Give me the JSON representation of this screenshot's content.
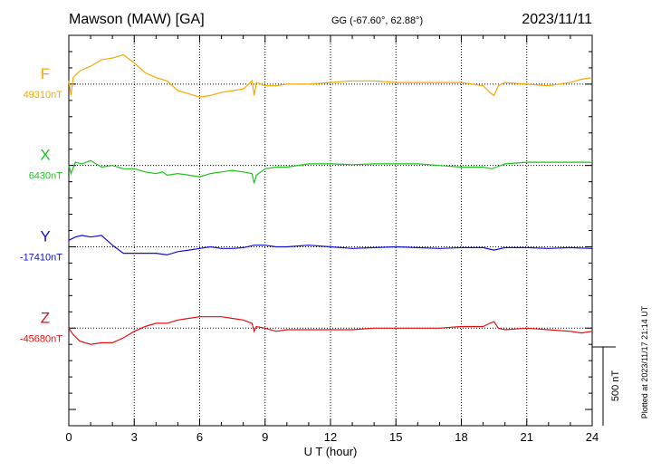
{
  "header": {
    "station": "Mawson (MAW)  [GA]",
    "coords": "GG (-67.60°,  62.88°)",
    "date": "2023/11/11"
  },
  "chart_data": {
    "type": "line",
    "xlabel": "U T (hour)",
    "xlim": [
      0,
      24
    ],
    "xticks": [
      0,
      3,
      6,
      9,
      12,
      15,
      18,
      21,
      24
    ],
    "x_minor_step": 1,
    "ylim_nT": [
      -1100,
      1300
    ],
    "scale_bar": {
      "label": "500 nT",
      "value": 500
    },
    "plotted_note": "Plotted at 2023/11/17 21:14 UT",
    "vertical_grid": [
      3,
      6,
      9,
      12,
      15,
      18,
      21
    ],
    "series": [
      {
        "name": "F",
        "baseline": "49310nT",
        "color": "#f5a800",
        "offset": 1000,
        "x": [
          0,
          0.1,
          0.2,
          0.5,
          1,
          1.5,
          2,
          2.5,
          3,
          3.5,
          4,
          4.5,
          5,
          5.5,
          6,
          6.5,
          7,
          7.5,
          8,
          8.4,
          8.5,
          8.6,
          9,
          9.5,
          10,
          11,
          12,
          13,
          14,
          15,
          16,
          17,
          18,
          18.5,
          19,
          19.3,
          19.5,
          19.7,
          20,
          21,
          22,
          23,
          23.5,
          24
        ],
        "y": [
          20,
          -70,
          40,
          80,
          110,
          150,
          160,
          180,
          130,
          70,
          40,
          20,
          -40,
          -60,
          -80,
          -70,
          -50,
          -40,
          -30,
          20,
          -70,
          10,
          -10,
          -10,
          0,
          0,
          10,
          20,
          20,
          10,
          10,
          10,
          10,
          0,
          -10,
          -50,
          -70,
          -10,
          10,
          0,
          -10,
          10,
          30,
          40
        ]
      },
      {
        "name": "X",
        "baseline": "6430nT",
        "color": "#1ec41e",
        "offset": 500,
        "x": [
          0,
          0.1,
          0.3,
          0.6,
          1,
          1.5,
          2,
          2.5,
          3,
          3.5,
          4,
          4.3,
          4.5,
          5,
          5.5,
          6,
          6.5,
          7,
          7.5,
          8,
          8.4,
          8.5,
          8.6,
          9,
          9.5,
          10,
          11,
          12,
          13,
          14,
          15,
          16,
          17,
          18,
          19,
          19.4,
          19.6,
          20,
          21,
          22,
          23,
          24
        ],
        "y": [
          0,
          -50,
          20,
          10,
          30,
          -10,
          0,
          -20,
          -20,
          -40,
          -50,
          -40,
          -60,
          -50,
          -60,
          -70,
          -50,
          -40,
          -30,
          -40,
          -50,
          -110,
          -60,
          -20,
          -10,
          -10,
          10,
          10,
          5,
          10,
          10,
          10,
          0,
          -10,
          -10,
          -20,
          -10,
          10,
          20,
          20,
          20,
          20
        ]
      },
      {
        "name": "Y",
        "baseline": "-17410nT",
        "color": "#1010d0",
        "offset": 0,
        "x": [
          0,
          0.3,
          0.6,
          1,
          1.5,
          2,
          2.5,
          3,
          3.5,
          4,
          4.5,
          5,
          5.5,
          6,
          6.5,
          7,
          7.5,
          8,
          8.5,
          9,
          9.5,
          10,
          11,
          12,
          13,
          14,
          15,
          16,
          17,
          18,
          19,
          19.5,
          20,
          21,
          22,
          23,
          24
        ],
        "y": [
          40,
          60,
          70,
          60,
          70,
          10,
          -40,
          -40,
          -40,
          -40,
          -50,
          -30,
          -20,
          -10,
          0,
          -10,
          -10,
          -5,
          10,
          10,
          0,
          0,
          10,
          0,
          -10,
          -5,
          0,
          -5,
          -10,
          -5,
          -5,
          -20,
          -5,
          -5,
          -10,
          -5,
          -10
        ]
      },
      {
        "name": "Z",
        "baseline": "-45680nT",
        "color": "#e01010",
        "offset": -500,
        "x": [
          0,
          0.2,
          0.5,
          1,
          1.5,
          2,
          2.5,
          3,
          3.5,
          4,
          4.5,
          5,
          5.5,
          6,
          6.5,
          7,
          7.5,
          8,
          8.4,
          8.5,
          8.6,
          9,
          9.5,
          10,
          11,
          12,
          13,
          14,
          15,
          16,
          17,
          18,
          19,
          19.3,
          19.5,
          19.7,
          20,
          21,
          22,
          23,
          23.5,
          24
        ],
        "y": [
          0,
          -40,
          -80,
          -100,
          -90,
          -90,
          -60,
          -20,
          10,
          30,
          30,
          50,
          60,
          70,
          70,
          70,
          60,
          50,
          30,
          -20,
          10,
          0,
          -20,
          -10,
          -10,
          -10,
          -10,
          0,
          0,
          0,
          0,
          10,
          10,
          30,
          40,
          0,
          -10,
          0,
          -10,
          -20,
          -30,
          -20
        ]
      }
    ]
  }
}
